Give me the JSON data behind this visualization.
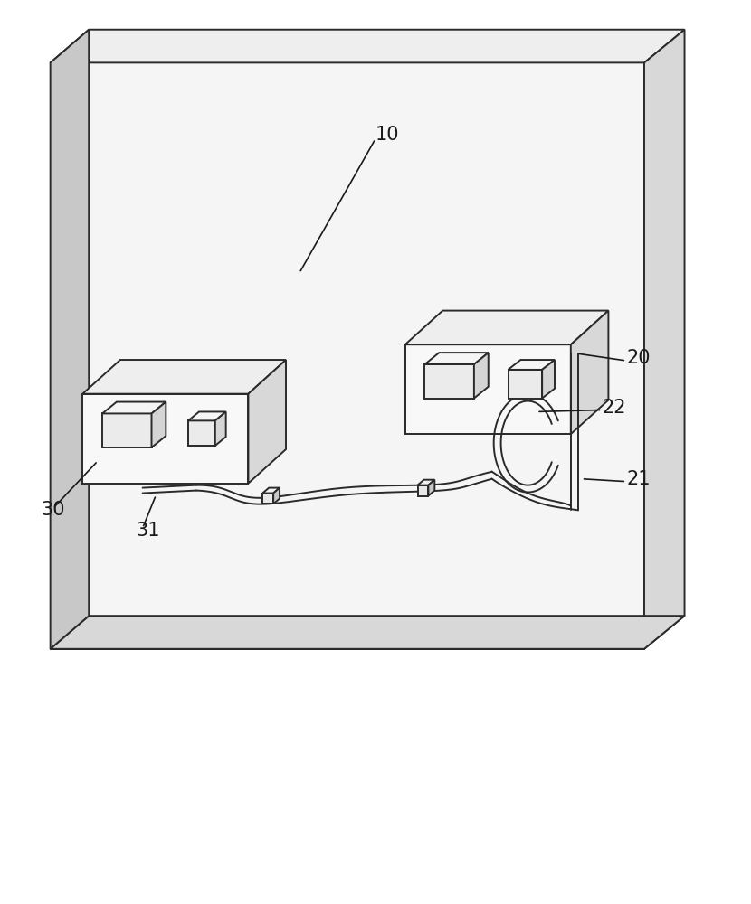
{
  "bg_color": "#ffffff",
  "line_color": "#2a2a2a",
  "line_width": 1.4,
  "label_color": "#1a1a1a",
  "label_fontsize": 15,
  "face_light": "#f8f8f8",
  "face_mid": "#eeeeee",
  "face_dark": "#d8d8d8",
  "face_darker": "#c8c8c8"
}
